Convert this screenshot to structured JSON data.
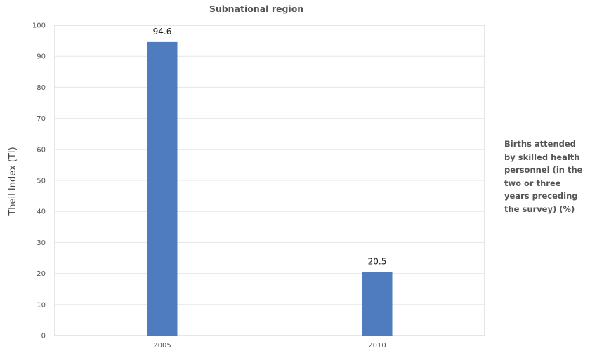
{
  "chart_data": {
    "type": "bar",
    "title": "Subnational region",
    "xlabel": "",
    "ylabel": "Theil Index (TI)",
    "categories": [
      "2005",
      "2010"
    ],
    "series": [
      {
        "name": "Births attended by skilled health personnel (in the two or three years preceding the survey) (%)",
        "values": [
          94.6,
          20.5
        ],
        "color": "#4f7bbf"
      }
    ],
    "ylim": [
      0,
      100
    ],
    "yticks": [
      0,
      10,
      20,
      30,
      40,
      50,
      60,
      70,
      80,
      90,
      100
    ],
    "grid": true,
    "legend_position": "right"
  }
}
